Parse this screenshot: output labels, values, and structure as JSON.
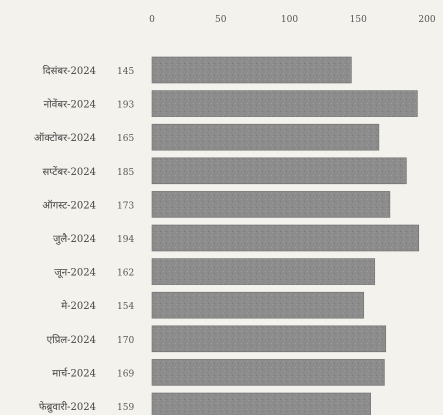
{
  "chart_data": {
    "type": "bar",
    "orientation": "horizontal",
    "title": "",
    "xlabel": "",
    "ylabel": "",
    "xlim": [
      0,
      200
    ],
    "x_ticks": [
      0,
      50,
      100,
      150,
      200
    ],
    "x_tick_labels": [
      "0",
      "50",
      "100",
      "150",
      "200"
    ],
    "grid": false,
    "legend": "none",
    "categories": [
      "दिसंबर-2024",
      "नोवेंबर-2024",
      "ऑक्टोबर-2024",
      "सप्टेंबर-2024",
      "ऑगस्ट-2024",
      "जुलै-2024",
      "जून-2024",
      "मे-2024",
      "एप्रिल-2024",
      "मार्च-2024",
      "फेब्रुवारी-2024"
    ],
    "values": [
      145,
      193,
      165,
      185,
      173,
      194,
      162,
      154,
      170,
      169,
      159
    ],
    "value_labels": [
      "145",
      "193",
      "165",
      "185",
      "173",
      "194",
      "162",
      "154",
      "170",
      "169",
      "159"
    ],
    "colors": {
      "bar": "#8a8a8a",
      "bar_edge": "#6e6e6e",
      "background": "#f4f2ec",
      "text": "#444444"
    }
  }
}
